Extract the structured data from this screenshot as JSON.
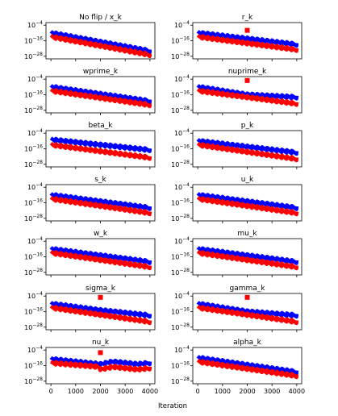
{
  "figure": {
    "xlabel": "Iteration"
  },
  "colors": {
    "upper_series": "#0000ff",
    "lower_series": "#ff0000",
    "marker": "#ff0000",
    "axes": "#000000"
  },
  "chart_data": {
    "type": "line",
    "layout": "grid 7 rows x 2 columns",
    "shared_x_ticks": [
      0,
      1000,
      2000,
      3000,
      4000
    ],
    "shared_y_ticks": [
      "10^-4",
      "10^-16",
      "10^-28"
    ],
    "y_scale": "log",
    "xlim": [
      -200,
      4200
    ],
    "ylim_exponent": [
      -30,
      -2
    ],
    "x_tick_labels_shown_on": "bottom row only",
    "grid": false,
    "panels": [
      {
        "title": "No flip / x_k",
        "blue": [
          [
            0,
            -10
          ],
          [
            4000,
            -24
          ]
        ],
        "red": [
          [
            0,
            -13
          ],
          [
            4000,
            -27
          ]
        ],
        "marker": null
      },
      {
        "title": "r_k",
        "blue": [
          [
            0,
            -10
          ],
          [
            4000,
            -19
          ]
        ],
        "red": [
          [
            0,
            -13
          ],
          [
            4000,
            -23
          ]
        ],
        "marker": {
          "x": 2000,
          "exp": -8
        }
      },
      {
        "title": "wprime_k",
        "blue": [
          [
            0,
            -10
          ],
          [
            4000,
            -21
          ]
        ],
        "red": [
          [
            0,
            -13
          ],
          [
            4000,
            -24
          ]
        ],
        "marker": null
      },
      {
        "title": "nuprime_k",
        "blue": [
          [
            0,
            -10
          ],
          [
            2000,
            -16
          ],
          [
            4000,
            -18
          ]
        ],
        "red": [
          [
            0,
            -13
          ],
          [
            4000,
            -23
          ]
        ],
        "marker": {
          "x": 2000,
          "exp": -5
        }
      },
      {
        "title": "beta_k",
        "blue": [
          [
            0,
            -9
          ],
          [
            4000,
            -17
          ]
        ],
        "red": [
          [
            0,
            -13
          ],
          [
            4000,
            -23
          ]
        ],
        "marker": null
      },
      {
        "title": "p_k",
        "blue": [
          [
            0,
            -10
          ],
          [
            4000,
            -19
          ]
        ],
        "red": [
          [
            0,
            -13
          ],
          [
            4000,
            -24
          ]
        ],
        "marker": null
      },
      {
        "title": "s_k",
        "blue": [
          [
            0,
            -10
          ],
          [
            4000,
            -20
          ]
        ],
        "red": [
          [
            0,
            -13
          ],
          [
            4000,
            -24
          ]
        ],
        "marker": null
      },
      {
        "title": "u_k",
        "blue": [
          [
            0,
            -10
          ],
          [
            4000,
            -20
          ]
        ],
        "red": [
          [
            0,
            -13
          ],
          [
            4000,
            -24
          ]
        ],
        "marker": null
      },
      {
        "title": "w_k",
        "blue": [
          [
            0,
            -10
          ],
          [
            4000,
            -20
          ]
        ],
        "red": [
          [
            0,
            -13
          ],
          [
            4000,
            -24
          ]
        ],
        "marker": null
      },
      {
        "title": "mu_k",
        "blue": [
          [
            0,
            -10
          ],
          [
            4000,
            -20
          ]
        ],
        "red": [
          [
            0,
            -13
          ],
          [
            4000,
            -24
          ]
        ],
        "marker": null
      },
      {
        "title": "sigma_k",
        "blue": [
          [
            0,
            -10
          ],
          [
            2000,
            -15
          ],
          [
            4000,
            -19
          ]
        ],
        "red": [
          [
            0,
            -13
          ],
          [
            4000,
            -24
          ]
        ],
        "marker": {
          "x": 2000,
          "exp": -5
        }
      },
      {
        "title": "gamma_k",
        "blue": [
          [
            0,
            -10
          ],
          [
            2000,
            -16
          ],
          [
            4000,
            -19
          ]
        ],
        "red": [
          [
            0,
            -13
          ],
          [
            4000,
            -24
          ]
        ],
        "marker": {
          "x": 2000,
          "exp": -5
        }
      },
      {
        "title": "nu_k",
        "blue": [
          [
            0,
            -11
          ],
          [
            2000,
            -15
          ],
          [
            2500,
            -13
          ],
          [
            3000,
            -14
          ],
          [
            3500,
            -15
          ],
          [
            4000,
            -14
          ]
        ],
        "red": [
          [
            0,
            -14
          ],
          [
            1950,
            -17
          ],
          [
            2000,
            -19
          ],
          [
            2500,
            -17
          ],
          [
            3000,
            -18
          ],
          [
            3500,
            -19
          ],
          [
            4000,
            -18
          ]
        ],
        "marker": {
          "x": 2000,
          "exp": -6
        }
      },
      {
        "title": "alpha_k",
        "blue": [
          [
            0,
            -10
          ],
          [
            4000,
            -21
          ]
        ],
        "red": [
          [
            0,
            -13
          ],
          [
            4000,
            -24
          ]
        ],
        "marker": null
      }
    ]
  }
}
